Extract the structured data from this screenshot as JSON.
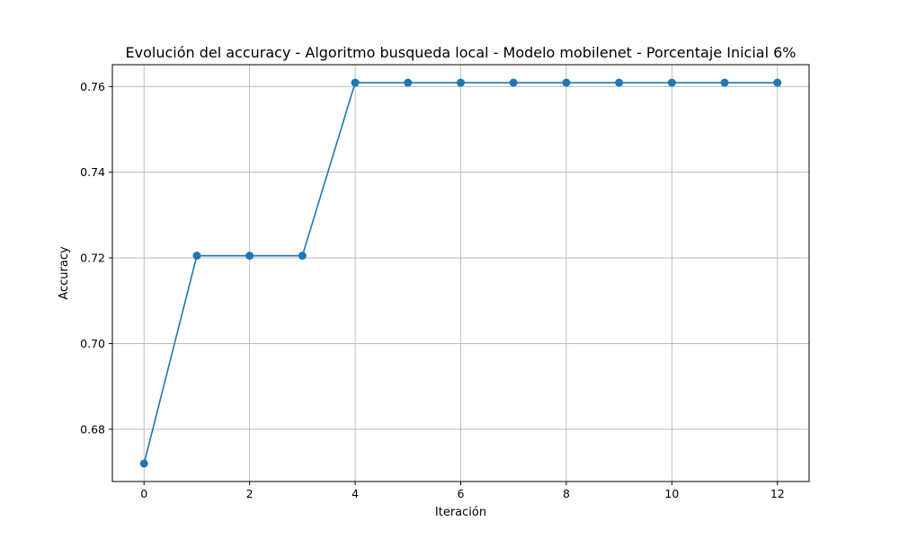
{
  "chart_data": {
    "type": "line",
    "title": "Evolución del accuracy - Algoritmo busqueda local - Modelo mobilenet - Porcentaje Inicial 6%",
    "xlabel": "Iteración",
    "ylabel": "Accuracy",
    "x": [
      0,
      1,
      2,
      3,
      4,
      5,
      6,
      7,
      8,
      9,
      10,
      11,
      12
    ],
    "series": [
      {
        "values": [
          0.672,
          0.7205,
          0.7205,
          0.7205,
          0.7609,
          0.7609,
          0.7609,
          0.7609,
          0.7609,
          0.7609,
          0.7609,
          0.7609,
          0.7609
        ],
        "color": "#1f77b4",
        "marker": "circle"
      }
    ],
    "xlim": [
      -0.6,
      12.6
    ],
    "ylim": [
      0.6678,
      0.7651
    ],
    "xticks": [
      0,
      2,
      4,
      6,
      8,
      10,
      12
    ],
    "xtick_labels": [
      "0",
      "2",
      "4",
      "6",
      "8",
      "10",
      "12"
    ],
    "yticks": [
      0.68,
      0.7,
      0.72,
      0.74,
      0.76
    ],
    "ytick_labels": [
      "0.68",
      "0.70",
      "0.72",
      "0.74",
      "0.76"
    ],
    "grid": true
  }
}
